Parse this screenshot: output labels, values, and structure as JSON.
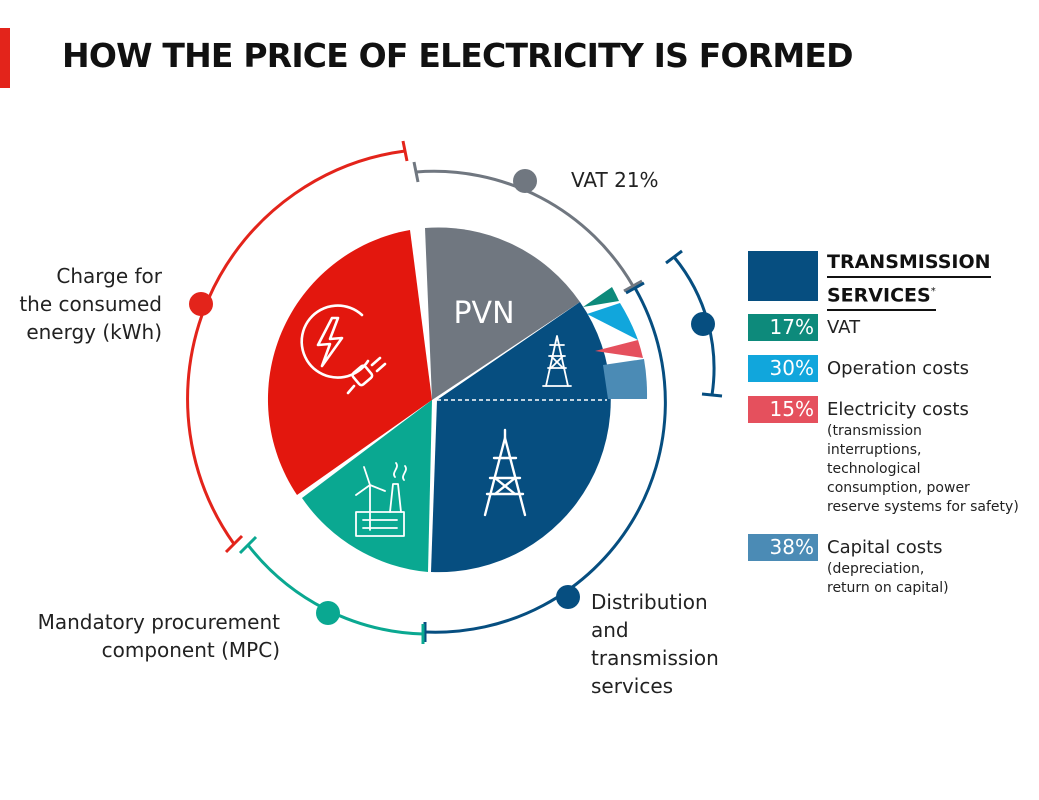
{
  "title": "HOW THE PRICE OF ELECTRICITY IS FORMED",
  "pie": {
    "pvn_label": "PVN",
    "segments": [
      {
        "name": "Charge for the consumed energy (kWh)",
        "color": "#e3170e"
      },
      {
        "name": "PVN",
        "color": "#707780"
      },
      {
        "name": "Distribution and transmission services",
        "color": "#064e80"
      },
      {
        "name": "Mandatory procurement component (MPC)",
        "color": "#0aa891"
      }
    ],
    "wedge_colors": [
      "#0d8a7b",
      "#11a6dc",
      "#e5505d",
      "#4b8bb5"
    ]
  },
  "labels": {
    "vat": "VAT 21%",
    "energy": [
      "Charge for",
      "the consumed",
      "energy (kWh)"
    ],
    "mpc": [
      "Mandatory procurement",
      "component (MPC)"
    ],
    "distribution": [
      "Distribution",
      "and",
      "transmission",
      "services"
    ]
  },
  "legend": {
    "header": [
      "TRANSMISSION",
      "SERVICES"
    ],
    "header_mark": "*",
    "header_color": "#064e80",
    "items": [
      {
        "pct": "17%",
        "label": "VAT",
        "color": "#0d8a7b",
        "note": []
      },
      {
        "pct": "30%",
        "label": "Operation costs",
        "color": "#11a6dc",
        "note": []
      },
      {
        "pct": "15%",
        "label": "Electricity costs",
        "color": "#e5505d",
        "note": [
          "(transmission",
          "interruptions,",
          "technological",
          "consumption, power",
          "reserve systems for safety)"
        ]
      },
      {
        "pct": "38%",
        "label": "Capital costs",
        "color": "#4b8bb5",
        "note": [
          "(depreciation,",
          "return on capital)"
        ]
      }
    ]
  },
  "colors": {
    "accent": "#e3241b",
    "ring_red": "#e3241b",
    "ring_grey": "#707780",
    "ring_blue": "#064e80",
    "ring_teal": "#0aa891"
  }
}
